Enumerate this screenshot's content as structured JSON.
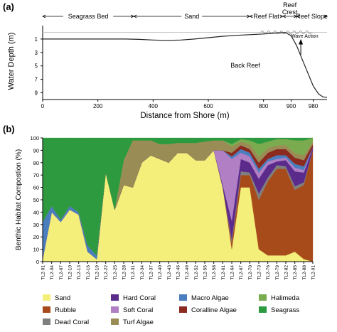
{
  "panel_labels": {
    "a": "(a)",
    "b": "(b)"
  },
  "chart_data": [
    {
      "type": "line",
      "panel": "(a)",
      "xlabel": "Distance from Shore (m)",
      "ylabel": "Water Depth (m)",
      "xlim": [
        0,
        1030
      ],
      "ylim": [
        -1,
        10
      ],
      "x_ticks": [
        0,
        200,
        400,
        600,
        800,
        900,
        980
      ],
      "x_tick_labels": [
        "0",
        "200",
        "400",
        "600",
        "800",
        "900",
        "980"
      ],
      "y_ticks": [
        1,
        3,
        5,
        7,
        9
      ],
      "y_tick_labels": [
        "1",
        "3",
        "5",
        "7",
        "9"
      ],
      "zones": [
        {
          "label": "Seagrass Bed",
          "start": 0,
          "end": 330
        },
        {
          "label": "Sand",
          "start": 330,
          "end": 750
        },
        {
          "label": "Reef Flat",
          "start": 750,
          "end": 870
        },
        {
          "label": "Reef Crest",
          "start": 870,
          "end": 920
        },
        {
          "label": "Reef Slope",
          "start": 920,
          "end": 1030
        }
      ],
      "annotations": {
        "back_reef": "Back Reef",
        "wave_action": "Wave Action"
      },
      "back_reef_x": 935,
      "sea_level": 0,
      "series": [
        {
          "values_x": [
            0,
            100,
            200,
            300,
            350,
            400,
            450,
            500,
            550,
            600,
            650,
            700,
            750,
            800,
            850,
            880,
            900,
            920,
            940,
            960,
            980,
            1000,
            1015,
            1030
          ],
          "values_y": [
            1,
            1,
            1,
            1,
            1.05,
            1.15,
            1.2,
            1.15,
            1.0,
            0.8,
            0.6,
            0.45,
            0.35,
            0.25,
            0.1,
            0.05,
            0.5,
            2.0,
            4.0,
            6.0,
            8.0,
            9.2,
            9.6,
            9.7
          ]
        }
      ]
    },
    {
      "type": "area",
      "panel": "(b)",
      "ylabel": "Benthic Habitat Compostion (%)",
      "ylim": [
        0,
        100
      ],
      "y_ticks": [
        0,
        10,
        20,
        30,
        40,
        50,
        60,
        70,
        80,
        90,
        100
      ],
      "y_tick_labels": [
        "0",
        "10",
        "20",
        "30",
        "40",
        "50",
        "60",
        "70",
        "80",
        "90",
        "100"
      ],
      "x_tick_labels": [
        "TL2-01",
        "TL2-04",
        "TL2-07",
        "TL2-10",
        "TL2-13",
        "TL2-16",
        "TL2-19",
        "TL2-22",
        "TL2-25",
        "TL2-28",
        "TL2-31",
        "TL2-34",
        "TL2-37",
        "TL2-40",
        "TL2-43",
        "TL2-46",
        "TL2-49",
        "TL2-52",
        "TL2-55",
        "TL2-58",
        "TL2-61",
        "TL2-64",
        "TL2-67",
        "TL2-70",
        "TL2-73",
        "TL2-76",
        "TL2-79",
        "TL2-82",
        "TL2-85",
        "TL2-88",
        "TL2-91"
      ],
      "legend_position": "bottom",
      "series": [
        {
          "name": "Sand",
          "color": "#f4ef7a",
          "values": [
            2,
            40,
            32,
            42,
            38,
            8,
            2,
            72,
            42,
            62,
            60,
            80,
            86,
            83,
            80,
            88,
            88,
            82,
            82,
            90,
            60,
            10,
            60,
            60,
            10,
            5,
            5,
            5,
            8,
            2,
            0
          ]
        },
        {
          "name": "Rubble",
          "color": "#a84b1a",
          "values": [
            0,
            0,
            0,
            0,
            0,
            0,
            0,
            0,
            0,
            0,
            0,
            0,
            0,
            0,
            0,
            0,
            0,
            0,
            0,
            0,
            0,
            5,
            10,
            10,
            40,
            60,
            70,
            70,
            50,
            60,
            90
          ]
        },
        {
          "name": "Dead Coral",
          "color": "#7f7f7f",
          "values": [
            0,
            0,
            0,
            0,
            0,
            0,
            0,
            0,
            0,
            0,
            0,
            0,
            0,
            0,
            0,
            0,
            0,
            0,
            0,
            0,
            0,
            3,
            3,
            2,
            5,
            3,
            3,
            2,
            3,
            2,
            0
          ]
        },
        {
          "name": "Hard Coral",
          "color": "#5b2b8c",
          "values": [
            0,
            0,
            0,
            0,
            0,
            0,
            0,
            0,
            0,
            0,
            0,
            0,
            0,
            0,
            0,
            0,
            0,
            0,
            0,
            0,
            2,
            15,
            10,
            8,
            12,
            10,
            3,
            5,
            12,
            8,
            2
          ]
        },
        {
          "name": "Soft Coral",
          "color": "#b07fc4",
          "values": [
            0,
            0,
            0,
            0,
            0,
            0,
            0,
            0,
            0,
            0,
            0,
            0,
            0,
            0,
            0,
            0,
            0,
            0,
            0,
            0,
            28,
            50,
            5,
            5,
            5,
            3,
            2,
            2,
            3,
            2,
            0
          ]
        },
        {
          "name": "Macro Algae",
          "color": "#4a7ebf",
          "values": [
            30,
            5,
            2,
            3,
            2,
            5,
            3,
            0,
            0,
            0,
            0,
            0,
            0,
            0,
            0,
            0,
            0,
            0,
            0,
            0,
            0,
            2,
            3,
            3,
            3,
            2,
            3,
            2,
            3,
            3,
            0
          ]
        },
        {
          "name": "Coralline Algae",
          "color": "#8b2a1f",
          "values": [
            0,
            0,
            0,
            0,
            0,
            0,
            0,
            0,
            0,
            0,
            0,
            0,
            0,
            0,
            0,
            0,
            0,
            0,
            0,
            0,
            0,
            3,
            3,
            3,
            5,
            5,
            5,
            5,
            5,
            5,
            3
          ]
        },
        {
          "name": "Turf Algae",
          "color": "#9a8c55",
          "values": [
            0,
            0,
            0,
            0,
            0,
            0,
            0,
            0,
            0,
            20,
            38,
            18,
            12,
            12,
            15,
            8,
            8,
            14,
            15,
            8,
            8,
            5,
            3,
            4,
            5,
            4,
            3,
            3,
            4,
            4,
            2
          ]
        },
        {
          "name": "Halimeda",
          "color": "#7aab4f",
          "values": [
            0,
            0,
            0,
            0,
            0,
            0,
            0,
            0,
            0,
            0,
            0,
            0,
            0,
            0,
            0,
            0,
            0,
            0,
            0,
            0,
            0,
            2,
            2,
            3,
            10,
            5,
            5,
            5,
            10,
            12,
            3
          ]
        },
        {
          "name": "Seagrass",
          "color": "#2e9a3f",
          "values": [
            68,
            55,
            66,
            55,
            60,
            87,
            95,
            28,
            58,
            18,
            2,
            2,
            2,
            5,
            5,
            4,
            4,
            4,
            3,
            2,
            2,
            5,
            1,
            2,
            5,
            3,
            1,
            1,
            2,
            2,
            0
          ]
        }
      ],
      "legend_order": [
        "Sand",
        "Hard Coral",
        "Macro Algae",
        "Halimeda",
        "Rubble",
        "Soft Coral",
        "Coralline Algae",
        "Seagrass",
        "Dead Coral",
        "Turf Algae"
      ]
    }
  ]
}
